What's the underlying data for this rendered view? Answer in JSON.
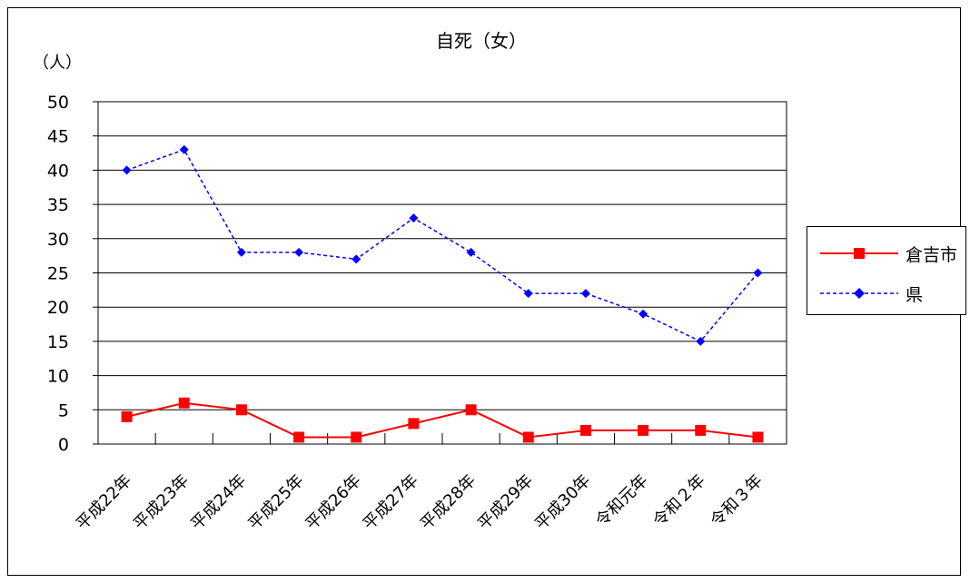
{
  "chart_data": {
    "type": "line",
    "title": "自死（女）",
    "ylabel": "（人）",
    "xlabel": "",
    "categories": [
      "平成22年",
      "平成23年",
      "平成24年",
      "平成25年",
      "平成26年",
      "平成27年",
      "平成28年",
      "平成29年",
      "平成30年",
      "令和元年",
      "令和２年",
      "令和３年"
    ],
    "ylim": [
      0,
      50
    ],
    "yticks": [
      0,
      5,
      10,
      15,
      20,
      25,
      30,
      35,
      40,
      45,
      50
    ],
    "grid": true,
    "legend_position": "right",
    "series": [
      {
        "name": "倉吉市",
        "values": [
          4,
          6,
          5,
          1,
          1,
          3,
          5,
          1,
          2,
          2,
          2,
          1
        ],
        "color": "#ff0000",
        "marker": "square",
        "line": "solid"
      },
      {
        "name": "県",
        "values": [
          40,
          43,
          28,
          28,
          27,
          33,
          28,
          22,
          22,
          19,
          15,
          25
        ],
        "color": "#0000ff",
        "marker": "diamond",
        "line": "dashed"
      }
    ]
  }
}
